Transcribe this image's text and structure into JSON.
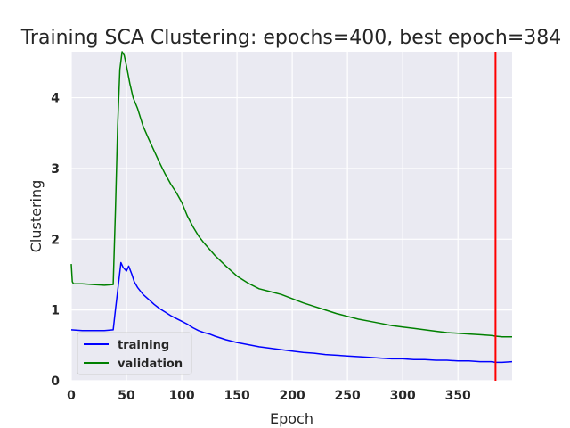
{
  "chart_data": {
    "type": "line",
    "title": "Training SCA Clustering: epochs=400, best epoch=384",
    "xlabel": "Epoch",
    "ylabel": "Clustering",
    "xlim": [
      0,
      399
    ],
    "ylim": [
      0,
      4.65
    ],
    "xticks": [
      0,
      50,
      100,
      150,
      200,
      250,
      300,
      350
    ],
    "yticks": [
      0,
      1,
      2,
      3,
      4
    ],
    "grid": true,
    "background": "#eaeaf2",
    "legend": {
      "position": "lower-left"
    },
    "best_epoch_marker": {
      "x": 384,
      "color": "#ff0000"
    },
    "series": [
      {
        "name": "training",
        "color": "#0000ff",
        "x": [
          0,
          10,
          20,
          30,
          38,
          40,
          43,
          45,
          47,
          50,
          52,
          55,
          57,
          60,
          65,
          70,
          75,
          80,
          85,
          90,
          95,
          100,
          105,
          110,
          115,
          120,
          125,
          130,
          140,
          150,
          160,
          170,
          180,
          190,
          200,
          210,
          220,
          230,
          240,
          250,
          260,
          270,
          280,
          290,
          300,
          310,
          320,
          330,
          340,
          350,
          360,
          370,
          380,
          384,
          390,
          399
        ],
        "y": [
          0.72,
          0.71,
          0.71,
          0.71,
          0.72,
          1.0,
          1.4,
          1.67,
          1.6,
          1.55,
          1.62,
          1.5,
          1.4,
          1.32,
          1.22,
          1.15,
          1.08,
          1.02,
          0.97,
          0.92,
          0.88,
          0.84,
          0.8,
          0.75,
          0.71,
          0.68,
          0.66,
          0.63,
          0.58,
          0.54,
          0.51,
          0.48,
          0.46,
          0.44,
          0.42,
          0.4,
          0.39,
          0.37,
          0.36,
          0.35,
          0.34,
          0.33,
          0.32,
          0.31,
          0.31,
          0.3,
          0.3,
          0.29,
          0.29,
          0.28,
          0.28,
          0.27,
          0.27,
          0.26,
          0.26,
          0.27
        ]
      },
      {
        "name": "validation",
        "color": "#008000",
        "x": [
          0,
          1,
          2,
          10,
          20,
          30,
          38,
          40,
          42,
          44,
          46,
          48,
          50,
          53,
          56,
          60,
          65,
          70,
          75,
          80,
          85,
          90,
          95,
          100,
          105,
          110,
          115,
          120,
          130,
          140,
          150,
          160,
          170,
          180,
          190,
          200,
          210,
          220,
          230,
          240,
          250,
          260,
          270,
          280,
          290,
          300,
          310,
          320,
          330,
          340,
          350,
          360,
          370,
          380,
          384,
          390,
          399
        ],
        "y": [
          1.65,
          1.4,
          1.37,
          1.37,
          1.36,
          1.35,
          1.36,
          2.4,
          3.6,
          4.4,
          4.65,
          4.6,
          4.45,
          4.2,
          4.0,
          3.85,
          3.6,
          3.42,
          3.25,
          3.08,
          2.92,
          2.78,
          2.66,
          2.52,
          2.33,
          2.18,
          2.05,
          1.95,
          1.77,
          1.62,
          1.48,
          1.38,
          1.3,
          1.26,
          1.22,
          1.16,
          1.1,
          1.05,
          1.0,
          0.95,
          0.91,
          0.87,
          0.84,
          0.81,
          0.78,
          0.76,
          0.74,
          0.72,
          0.7,
          0.68,
          0.67,
          0.66,
          0.65,
          0.64,
          0.63,
          0.62,
          0.62
        ]
      }
    ]
  }
}
